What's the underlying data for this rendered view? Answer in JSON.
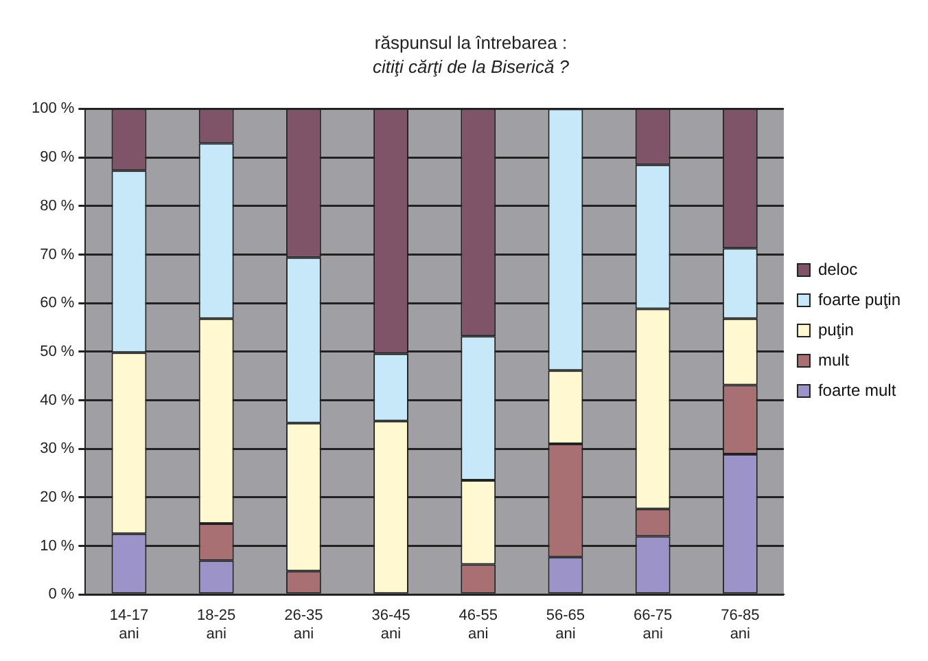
{
  "chart_data": {
    "type": "bar",
    "stacked": true,
    "title": "răspunsul la întrebarea :",
    "subtitle": "citiţi cărţi de la Biserică ?",
    "categories": [
      "14-17 ani",
      "18-25 ani",
      "26-35 ani",
      "36-45 ani",
      "46-55 ani",
      "56-65 ani",
      "66-75 ani",
      "76-85 ani"
    ],
    "series": [
      {
        "name": "foarte mult",
        "color": "#9c94c8",
        "values": [
          12.5,
          7,
          0,
          0,
          0,
          7.7,
          12,
          28.9
        ]
      },
      {
        "name": "mult",
        "color": "#a87072",
        "values": [
          0,
          7.6,
          4.8,
          0,
          6.2,
          23.3,
          5.6,
          14.2
        ]
      },
      {
        "name": "puţin",
        "color": "#fff8d0",
        "values": [
          37.3,
          42.2,
          30.5,
          35.7,
          17.3,
          15.1,
          41.2,
          13.7
        ]
      },
      {
        "name": "foarte puţin",
        "color": "#c6e8f8",
        "values": [
          37.5,
          36.1,
          34.1,
          13.9,
          29.7,
          53.9,
          29.7,
          14.5
        ]
      },
      {
        "name": "deloc",
        "color": "#7f5468",
        "values": [
          12.7,
          7.1,
          30.6,
          50.4,
          46.8,
          0,
          11.5,
          28.7
        ]
      }
    ],
    "ylim": [
      0,
      100
    ],
    "yticks": [
      {
        "value": 0,
        "label": "0 %"
      },
      {
        "value": 10,
        "label": "10 %"
      },
      {
        "value": 20,
        "label": "20 %"
      },
      {
        "value": 30,
        "label": "30 %"
      },
      {
        "value": 40,
        "label": "40 %"
      },
      {
        "value": 50,
        "label": "50 %"
      },
      {
        "value": 60,
        "label": "60 %"
      },
      {
        "value": 70,
        "label": "70 %"
      },
      {
        "value": 80,
        "label": "80 %"
      },
      {
        "value": 90,
        "label": "90 %"
      },
      {
        "value": 100,
        "label": "100 %"
      }
    ],
    "grid": "y",
    "legend": "right"
  }
}
